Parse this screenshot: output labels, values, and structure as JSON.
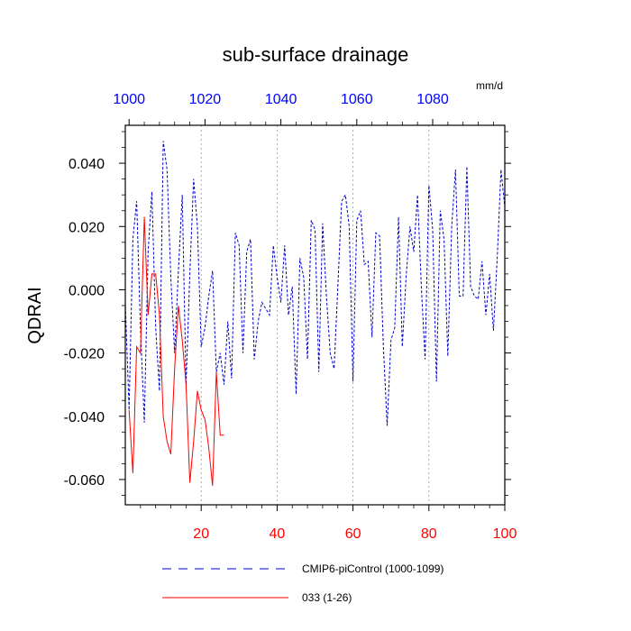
{
  "chart_data": {
    "type": "line",
    "title": "sub-surface drainage",
    "ylabel": "QDRAI",
    "units": "mm/d",
    "ylim": [
      -0.068,
      0.052
    ],
    "xlim_bottom": [
      0,
      100
    ],
    "xlim_top": [
      999,
      1099
    ],
    "y_ticks": [
      0.04,
      0.02,
      0.0,
      -0.02,
      -0.04,
      -0.06
    ],
    "y_tick_labels": [
      "0.040",
      "0.020",
      "0.000",
      "-0.020",
      "-0.040",
      "-0.060"
    ],
    "x_ticks_bottom": [
      20,
      40,
      60,
      80,
      100
    ],
    "x_tick_labels_bottom": [
      "20",
      "40",
      "60",
      "80",
      "100"
    ],
    "x_ticks_top": [
      1000,
      1020,
      1040,
      1060,
      1080
    ],
    "x_tick_labels_top": [
      "1000",
      "1020",
      "1040",
      "1060",
      "1080"
    ],
    "grid_x": [
      20,
      40,
      60,
      80
    ],
    "colors": {
      "top_axis": "#0000ff",
      "bottom_axis": "#ff0000"
    },
    "series": [
      {
        "name": "CMIP6-piControl (1000-1099)",
        "color": "#0000cc",
        "style": "dashed",
        "x": [
          0,
          1,
          2,
          3,
          4,
          5,
          6,
          7,
          8,
          9,
          10,
          11,
          12,
          13,
          14,
          15,
          16,
          17,
          18,
          19,
          20,
          21,
          22,
          23,
          24,
          25,
          26,
          27,
          28,
          29,
          30,
          31,
          32,
          33,
          34,
          35,
          36,
          37,
          38,
          39,
          40,
          41,
          42,
          43,
          44,
          45,
          46,
          47,
          48,
          49,
          50,
          51,
          52,
          53,
          54,
          55,
          56,
          57,
          58,
          59,
          60,
          61,
          62,
          63,
          64,
          65,
          66,
          67,
          68,
          69,
          70,
          71,
          72,
          73,
          74,
          75,
          76,
          77,
          78,
          79,
          80,
          81,
          82,
          83,
          84,
          85,
          86,
          87,
          88,
          89,
          90,
          91,
          92,
          93,
          94,
          95,
          96,
          97,
          98,
          99,
          100
        ],
        "values": [
          -0.004,
          -0.038,
          0.016,
          0.028,
          -0.012,
          -0.042,
          0.012,
          0.031,
          -0.012,
          -0.032,
          0.047,
          0.038,
          0.004,
          -0.02,
          0.006,
          0.03,
          -0.03,
          0.005,
          0.035,
          0.02,
          -0.018,
          -0.012,
          -0.002,
          0.006,
          -0.026,
          -0.02,
          -0.03,
          -0.01,
          -0.028,
          0.018,
          0.014,
          -0.02,
          0.012,
          0.016,
          -0.022,
          -0.01,
          -0.004,
          -0.006,
          -0.008,
          0.014,
          0.004,
          -0.004,
          0.014,
          -0.008,
          0.001,
          -0.033,
          0.01,
          0.004,
          -0.022,
          0.022,
          0.019,
          -0.026,
          0.021,
          -0.002,
          -0.02,
          -0.025,
          0.001,
          0.028,
          0.03,
          0.02,
          -0.029,
          0.022,
          0.025,
          0.008,
          0.009,
          -0.015,
          0.018,
          0.017,
          -0.018,
          -0.043,
          -0.016,
          -0.012,
          0.023,
          -0.018,
          0.004,
          0.02,
          0.012,
          0.03,
          0.001,
          -0.022,
          0.033,
          0.019,
          -0.029,
          0.025,
          0.016,
          -0.021,
          0.02,
          0.038,
          -0.002,
          -0.002,
          0.039,
          0.001,
          -0.002,
          -0.003,
          0.009,
          -0.008,
          0.005,
          -0.013,
          0.01,
          0.038,
          0.026
        ]
      },
      {
        "name": "033 (1-26)",
        "color": "#ff0000",
        "style": "solid",
        "x": [
          1,
          2,
          3,
          4,
          5,
          6,
          7,
          8,
          9,
          10,
          11,
          12,
          13,
          14,
          15,
          16,
          17,
          18,
          19,
          20,
          21,
          22,
          23,
          24,
          25,
          26
        ],
        "values": [
          -0.038,
          -0.058,
          -0.018,
          -0.02,
          0.023,
          -0.008,
          0.005,
          0.005,
          -0.008,
          -0.04,
          -0.048,
          -0.052,
          -0.025,
          -0.005,
          -0.016,
          -0.03,
          -0.061,
          -0.048,
          -0.032,
          -0.038,
          -0.041,
          -0.05,
          -0.062,
          -0.026,
          -0.046,
          -0.046
        ]
      }
    ],
    "legend": {
      "position": "bottom"
    }
  }
}
